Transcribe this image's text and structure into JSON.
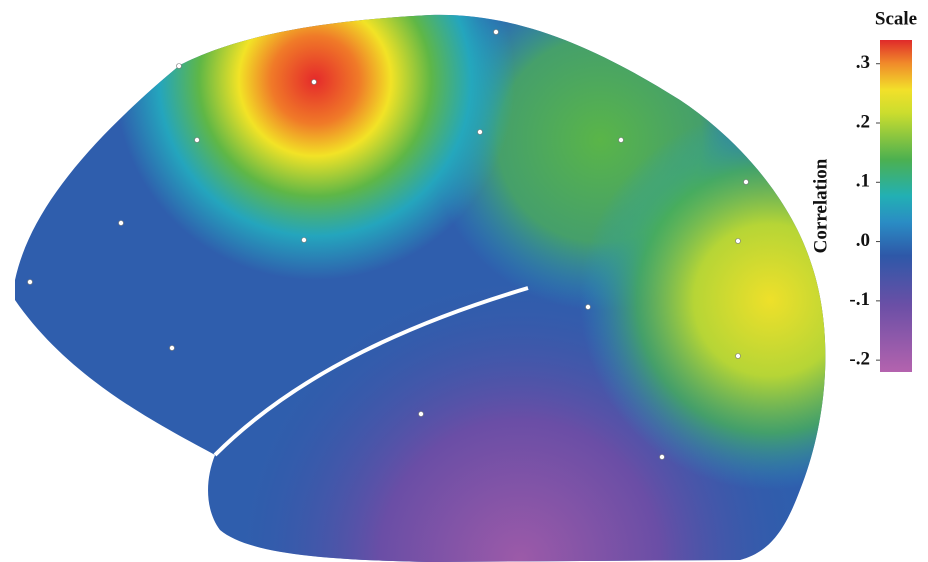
{
  "chart_data": {
    "type": "heatmap",
    "title": "Scale",
    "colorbar_label": "Correlation",
    "zlim": [
      -0.22,
      0.34
    ],
    "zticks": [
      {
        "value": 0.3,
        "label": ".3"
      },
      {
        "value": 0.2,
        "label": ".2"
      },
      {
        "value": 0.1,
        "label": ".1"
      },
      {
        "value": 0,
        "label": ".0"
      },
      {
        "value": -0.1,
        "label": "-.1"
      },
      {
        "value": -0.2,
        "label": "-.2"
      }
    ]
  }
}
